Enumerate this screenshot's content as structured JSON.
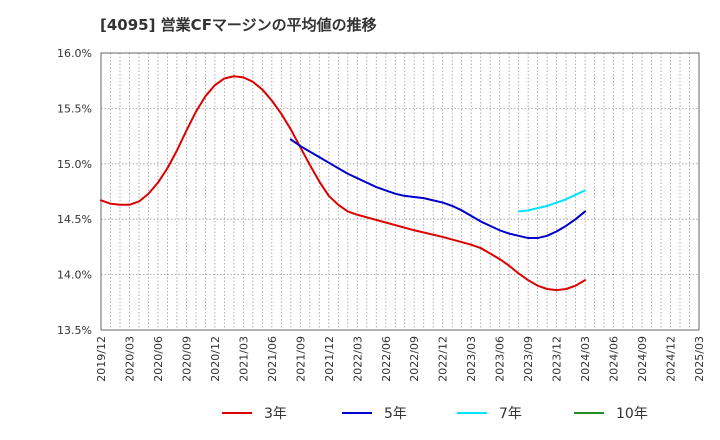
{
  "chart_data": {
    "type": "line",
    "title": "[4095]  営業CFマージンの平均値の推移",
    "xlabel": "",
    "ylabel": "",
    "ylim": [
      13.5,
      16.0
    ],
    "yticks": [
      "16.0%",
      "15.5%",
      "15.0%",
      "14.5%",
      "14.0%",
      "13.5%"
    ],
    "ytick_values": [
      16.0,
      15.5,
      15.0,
      14.5,
      14.0,
      13.5
    ],
    "categories": [
      "2019/12",
      "2020/03",
      "2020/06",
      "2020/09",
      "2020/12",
      "2021/03",
      "2021/06",
      "2021/09",
      "2021/12",
      "2022/03",
      "2022/06",
      "2022/09",
      "2022/12",
      "2023/03",
      "2023/06",
      "2023/09",
      "2023/12",
      "2024/03",
      "2024/06",
      "2024/09",
      "2024/12",
      "2025/03"
    ],
    "grid": true,
    "legend_position": "bottom",
    "series": [
      {
        "name": "3年",
        "color": "#dd0000",
        "x": [
          "2019/12",
          "2020/01",
          "2020/02",
          "2020/03",
          "2020/04",
          "2020/05",
          "2020/06",
          "2020/07",
          "2020/08",
          "2020/09",
          "2020/10",
          "2020/11",
          "2020/12",
          "2021/01",
          "2021/02",
          "2021/03",
          "2021/04",
          "2021/05",
          "2021/06",
          "2021/07",
          "2021/08",
          "2021/09",
          "2021/10",
          "2021/11",
          "2021/12",
          "2022/01",
          "2022/02",
          "2022/03",
          "2022/06",
          "2022/09",
          "2022/12",
          "2023/03",
          "2023/04",
          "2023/05",
          "2023/06",
          "2023/07",
          "2023/08",
          "2023/09",
          "2023/10",
          "2023/11",
          "2023/12",
          "2024/01",
          "2024/02",
          "2024/03"
        ],
        "values": [
          14.67,
          14.64,
          14.63,
          14.63,
          14.66,
          14.73,
          14.83,
          14.96,
          15.12,
          15.3,
          15.47,
          15.61,
          15.71,
          15.77,
          15.79,
          15.78,
          15.74,
          15.67,
          15.57,
          15.45,
          15.31,
          15.15,
          14.99,
          14.84,
          14.71,
          14.63,
          14.57,
          14.54,
          14.47,
          14.4,
          14.34,
          14.27,
          14.24,
          14.19,
          14.14,
          14.08,
          14.01,
          13.95,
          13.9,
          13.87,
          13.86,
          13.87,
          13.9,
          13.95
        ]
      },
      {
        "name": "5年",
        "color": "#0000cc",
        "x": [
          "2021/08",
          "2021/09",
          "2021/10",
          "2021/11",
          "2021/12",
          "2022/01",
          "2022/02",
          "2022/03",
          "2022/04",
          "2022/05",
          "2022/06",
          "2022/07",
          "2022/08",
          "2022/09",
          "2022/10",
          "2022/11",
          "2022/12",
          "2023/01",
          "2023/02",
          "2023/03",
          "2023/04",
          "2023/05",
          "2023/06",
          "2023/07",
          "2023/08",
          "2023/09",
          "2023/10",
          "2023/11",
          "2023/12",
          "2024/01",
          "2024/02",
          "2024/03"
        ],
        "values": [
          15.22,
          15.16,
          15.11,
          15.06,
          15.01,
          14.96,
          14.91,
          14.87,
          14.83,
          14.79,
          14.76,
          14.73,
          14.71,
          14.7,
          14.69,
          14.67,
          14.65,
          14.62,
          14.58,
          14.53,
          14.48,
          14.44,
          14.4,
          14.37,
          14.35,
          14.33,
          14.33,
          14.35,
          14.39,
          14.44,
          14.5,
          14.57
        ]
      },
      {
        "name": "7年",
        "color": "#00e5ff",
        "x": [
          "2023/08",
          "2023/09",
          "2023/10",
          "2023/11",
          "2023/12",
          "2024/01",
          "2024/02",
          "2024/03"
        ],
        "values": [
          14.57,
          14.58,
          14.6,
          14.62,
          14.65,
          14.68,
          14.72,
          14.76
        ]
      },
      {
        "name": "10年",
        "color": "#228b22",
        "x": [],
        "values": []
      }
    ]
  }
}
